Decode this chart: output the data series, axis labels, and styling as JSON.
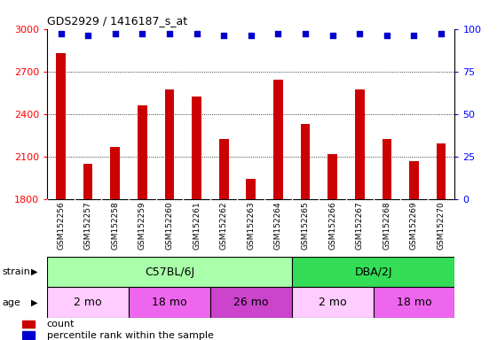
{
  "title": "GDS2929 / 1416187_s_at",
  "samples": [
    "GSM152256",
    "GSM152257",
    "GSM152258",
    "GSM152259",
    "GSM152260",
    "GSM152261",
    "GSM152262",
    "GSM152263",
    "GSM152264",
    "GSM152265",
    "GSM152266",
    "GSM152267",
    "GSM152268",
    "GSM152269",
    "GSM152270"
  ],
  "counts": [
    2830,
    2050,
    2165,
    2460,
    2570,
    2520,
    2225,
    1940,
    2640,
    2330,
    2115,
    2570,
    2225,
    2065,
    2190
  ],
  "percentile_ranks": [
    97,
    96,
    97,
    97,
    97,
    97,
    96,
    96,
    97,
    97,
    96,
    97,
    96,
    96,
    97
  ],
  "bar_color": "#cc0000",
  "dot_color": "#0000cc",
  "ylim_left": [
    1800,
    3000
  ],
  "ylim_right": [
    0,
    100
  ],
  "yticks_left": [
    1800,
    2100,
    2400,
    2700,
    3000
  ],
  "yticks_right": [
    0,
    25,
    50,
    75,
    100
  ],
  "background_color": "#ffffff",
  "plot_bg_color": "#ffffff",
  "xtick_bg_color": "#d8d8d8",
  "strain_groups": [
    {
      "label": "C57BL/6J",
      "start": 0,
      "end": 9,
      "color": "#aaffaa"
    },
    {
      "label": "DBA/2J",
      "start": 9,
      "end": 15,
      "color": "#33dd55"
    }
  ],
  "age_groups": [
    {
      "label": "2 mo",
      "start": 0,
      "end": 3,
      "color": "#ffccff"
    },
    {
      "label": "18 mo",
      "start": 3,
      "end": 6,
      "color": "#ee66ee"
    },
    {
      "label": "26 mo",
      "start": 6,
      "end": 9,
      "color": "#cc44cc"
    },
    {
      "label": "2 mo",
      "start": 9,
      "end": 12,
      "color": "#ffccff"
    },
    {
      "label": "18 mo",
      "start": 12,
      "end": 15,
      "color": "#ee66ee"
    }
  ],
  "legend_items": [
    {
      "label": "count",
      "color": "#cc0000"
    },
    {
      "label": "percentile rank within the sample",
      "color": "#0000cc"
    }
  ]
}
